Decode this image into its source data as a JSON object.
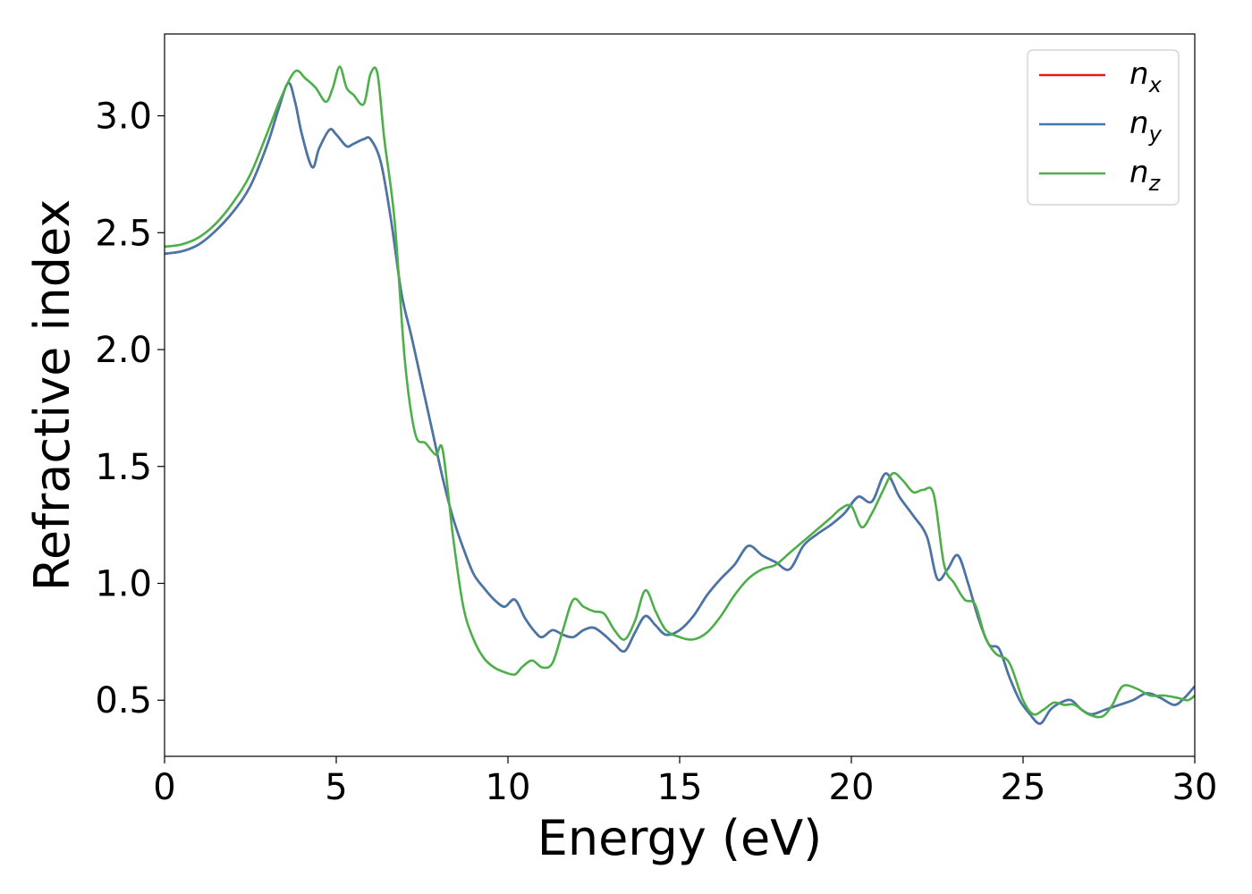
{
  "chart_data": {
    "type": "line",
    "xlabel": "Energy (eV)",
    "ylabel": "Refractive index",
    "xlim": [
      0,
      30
    ],
    "ylim": [
      0.26,
      3.35
    ],
    "xticks": [
      0,
      5,
      10,
      15,
      20,
      25,
      30
    ],
    "xtick_labels": [
      "0",
      "5",
      "10",
      "15",
      "20",
      "25",
      "30"
    ],
    "yticks": [
      0.5,
      1.0,
      1.5,
      2.0,
      2.5,
      3.0
    ],
    "ytick_labels": [
      "0.5",
      "1.0",
      "1.5",
      "2.0",
      "2.5",
      "3.0"
    ],
    "grid": false,
    "legend_position": "top-right",
    "series": [
      {
        "name": "n_x",
        "legend_base": "n",
        "legend_sub": "x",
        "color": "#e41a1c",
        "x": [
          0,
          0.5,
          1,
          1.5,
          2,
          2.5,
          3,
          3.3,
          3.6,
          3.8,
          4,
          4.3,
          4.5,
          4.8,
          5,
          5.3,
          5.5,
          5.8,
          6,
          6.3,
          6.6,
          6.9,
          7.2,
          7.5,
          7.8,
          8.1,
          8.4,
          8.7,
          9,
          9.3,
          9.6,
          9.9,
          10.2,
          10.5,
          10.8,
          11,
          11.3,
          11.6,
          11.9,
          12.2,
          12.5,
          12.8,
          13.1,
          13.4,
          13.7,
          14,
          14.3,
          14.6,
          15,
          15.4,
          15.8,
          16.2,
          16.6,
          17,
          17.4,
          17.8,
          18.2,
          18.6,
          19,
          19.4,
          19.8,
          20.2,
          20.6,
          21,
          21.4,
          21.8,
          22.2,
          22.5,
          22.8,
          23.1,
          23.4,
          23.7,
          24,
          24.3,
          24.6,
          24.9,
          25.2,
          25.5,
          25.8,
          26.1,
          26.4,
          26.7,
          27,
          27.4,
          27.8,
          28.2,
          28.6,
          29,
          29.4,
          29.7,
          30
        ],
        "y": [
          2.41,
          2.42,
          2.45,
          2.51,
          2.59,
          2.7,
          2.88,
          3.02,
          3.14,
          3.06,
          2.92,
          2.78,
          2.86,
          2.94,
          2.92,
          2.87,
          2.88,
          2.9,
          2.9,
          2.8,
          2.55,
          2.24,
          2.05,
          1.85,
          1.65,
          1.45,
          1.28,
          1.15,
          1.04,
          0.98,
          0.93,
          0.9,
          0.93,
          0.85,
          0.79,
          0.77,
          0.8,
          0.78,
          0.77,
          0.8,
          0.81,
          0.78,
          0.74,
          0.71,
          0.79,
          0.86,
          0.82,
          0.78,
          0.8,
          0.86,
          0.95,
          1.02,
          1.08,
          1.16,
          1.12,
          1.09,
          1.06,
          1.16,
          1.21,
          1.25,
          1.3,
          1.37,
          1.35,
          1.47,
          1.37,
          1.29,
          1.2,
          1.02,
          1.06,
          1.12,
          1.0,
          0.85,
          0.74,
          0.72,
          0.6,
          0.5,
          0.44,
          0.4,
          0.46,
          0.49,
          0.5,
          0.46,
          0.44,
          0.46,
          0.48,
          0.5,
          0.53,
          0.51,
          0.48,
          0.51,
          0.56
        ]
      },
      {
        "name": "n_y",
        "legend_base": "n",
        "legend_sub": "y",
        "color": "#4477aa",
        "x": [
          0,
          0.5,
          1,
          1.5,
          2,
          2.5,
          3,
          3.3,
          3.6,
          3.8,
          4,
          4.3,
          4.5,
          4.8,
          5,
          5.3,
          5.5,
          5.8,
          6,
          6.3,
          6.6,
          6.9,
          7.2,
          7.5,
          7.8,
          8.1,
          8.4,
          8.7,
          9,
          9.3,
          9.6,
          9.9,
          10.2,
          10.5,
          10.8,
          11,
          11.3,
          11.6,
          11.9,
          12.2,
          12.5,
          12.8,
          13.1,
          13.4,
          13.7,
          14,
          14.3,
          14.6,
          15,
          15.4,
          15.8,
          16.2,
          16.6,
          17,
          17.4,
          17.8,
          18.2,
          18.6,
          19,
          19.4,
          19.8,
          20.2,
          20.6,
          21,
          21.4,
          21.8,
          22.2,
          22.5,
          22.8,
          23.1,
          23.4,
          23.7,
          24,
          24.3,
          24.6,
          24.9,
          25.2,
          25.5,
          25.8,
          26.1,
          26.4,
          26.7,
          27,
          27.4,
          27.8,
          28.2,
          28.6,
          29,
          29.4,
          29.7,
          30
        ],
        "y": [
          2.41,
          2.42,
          2.45,
          2.51,
          2.59,
          2.7,
          2.88,
          3.02,
          3.14,
          3.06,
          2.92,
          2.78,
          2.86,
          2.94,
          2.92,
          2.87,
          2.88,
          2.9,
          2.9,
          2.8,
          2.55,
          2.24,
          2.05,
          1.85,
          1.65,
          1.45,
          1.28,
          1.15,
          1.04,
          0.98,
          0.93,
          0.9,
          0.93,
          0.85,
          0.79,
          0.77,
          0.8,
          0.78,
          0.77,
          0.8,
          0.81,
          0.78,
          0.74,
          0.71,
          0.79,
          0.86,
          0.82,
          0.78,
          0.8,
          0.86,
          0.95,
          1.02,
          1.08,
          1.16,
          1.12,
          1.09,
          1.06,
          1.16,
          1.21,
          1.25,
          1.3,
          1.37,
          1.35,
          1.47,
          1.37,
          1.29,
          1.2,
          1.02,
          1.06,
          1.12,
          1.0,
          0.85,
          0.74,
          0.72,
          0.6,
          0.5,
          0.44,
          0.4,
          0.46,
          0.49,
          0.5,
          0.46,
          0.44,
          0.46,
          0.48,
          0.5,
          0.53,
          0.51,
          0.48,
          0.51,
          0.56
        ]
      },
      {
        "name": "n_z",
        "legend_base": "n",
        "legend_sub": "z",
        "color": "#4daf4a",
        "x": [
          0,
          0.5,
          1,
          1.5,
          2,
          2.5,
          3,
          3.4,
          3.8,
          4.1,
          4.4,
          4.7,
          4.9,
          5.1,
          5.3,
          5.5,
          5.8,
          6,
          6.2,
          6.4,
          6.7,
          7.0,
          7.3,
          7.6,
          7.9,
          8.1,
          8.4,
          8.7,
          9,
          9.3,
          9.6,
          9.9,
          10.2,
          10.4,
          10.7,
          11,
          11.3,
          11.6,
          11.9,
          12.2,
          12.5,
          12.8,
          13.1,
          13.4,
          13.7,
          14,
          14.3,
          14.6,
          15,
          15.4,
          15.8,
          16.2,
          16.6,
          17,
          17.4,
          17.8,
          18.2,
          18.6,
          19,
          19.4,
          19.7,
          20,
          20.3,
          20.6,
          20.9,
          21.2,
          21.5,
          21.8,
          22.1,
          22.4,
          22.7,
          23.0,
          23.3,
          23.6,
          23.9,
          24.2,
          24.6,
          25,
          25.3,
          25.6,
          25.9,
          26.2,
          26.5,
          26.9,
          27.3,
          27.6,
          27.9,
          28.3,
          28.7,
          29.1,
          29.5,
          29.8,
          30
        ],
        "y": [
          2.44,
          2.45,
          2.48,
          2.54,
          2.63,
          2.75,
          2.93,
          3.08,
          3.19,
          3.16,
          3.12,
          3.06,
          3.12,
          3.21,
          3.12,
          3.09,
          3.05,
          3.18,
          3.18,
          2.9,
          2.55,
          1.95,
          1.64,
          1.6,
          1.55,
          1.57,
          1.2,
          0.9,
          0.76,
          0.68,
          0.64,
          0.62,
          0.61,
          0.64,
          0.67,
          0.64,
          0.66,
          0.8,
          0.93,
          0.9,
          0.88,
          0.87,
          0.8,
          0.76,
          0.84,
          0.97,
          0.88,
          0.8,
          0.77,
          0.76,
          0.79,
          0.86,
          0.95,
          1.02,
          1.06,
          1.08,
          1.13,
          1.18,
          1.23,
          1.28,
          1.32,
          1.33,
          1.24,
          1.3,
          1.39,
          1.47,
          1.44,
          1.39,
          1.4,
          1.38,
          1.08,
          1.0,
          0.93,
          0.91,
          0.77,
          0.7,
          0.66,
          0.5,
          0.44,
          0.46,
          0.49,
          0.48,
          0.48,
          0.44,
          0.43,
          0.48,
          0.56,
          0.55,
          0.52,
          0.52,
          0.51,
          0.5,
          0.52
        ]
      }
    ]
  }
}
